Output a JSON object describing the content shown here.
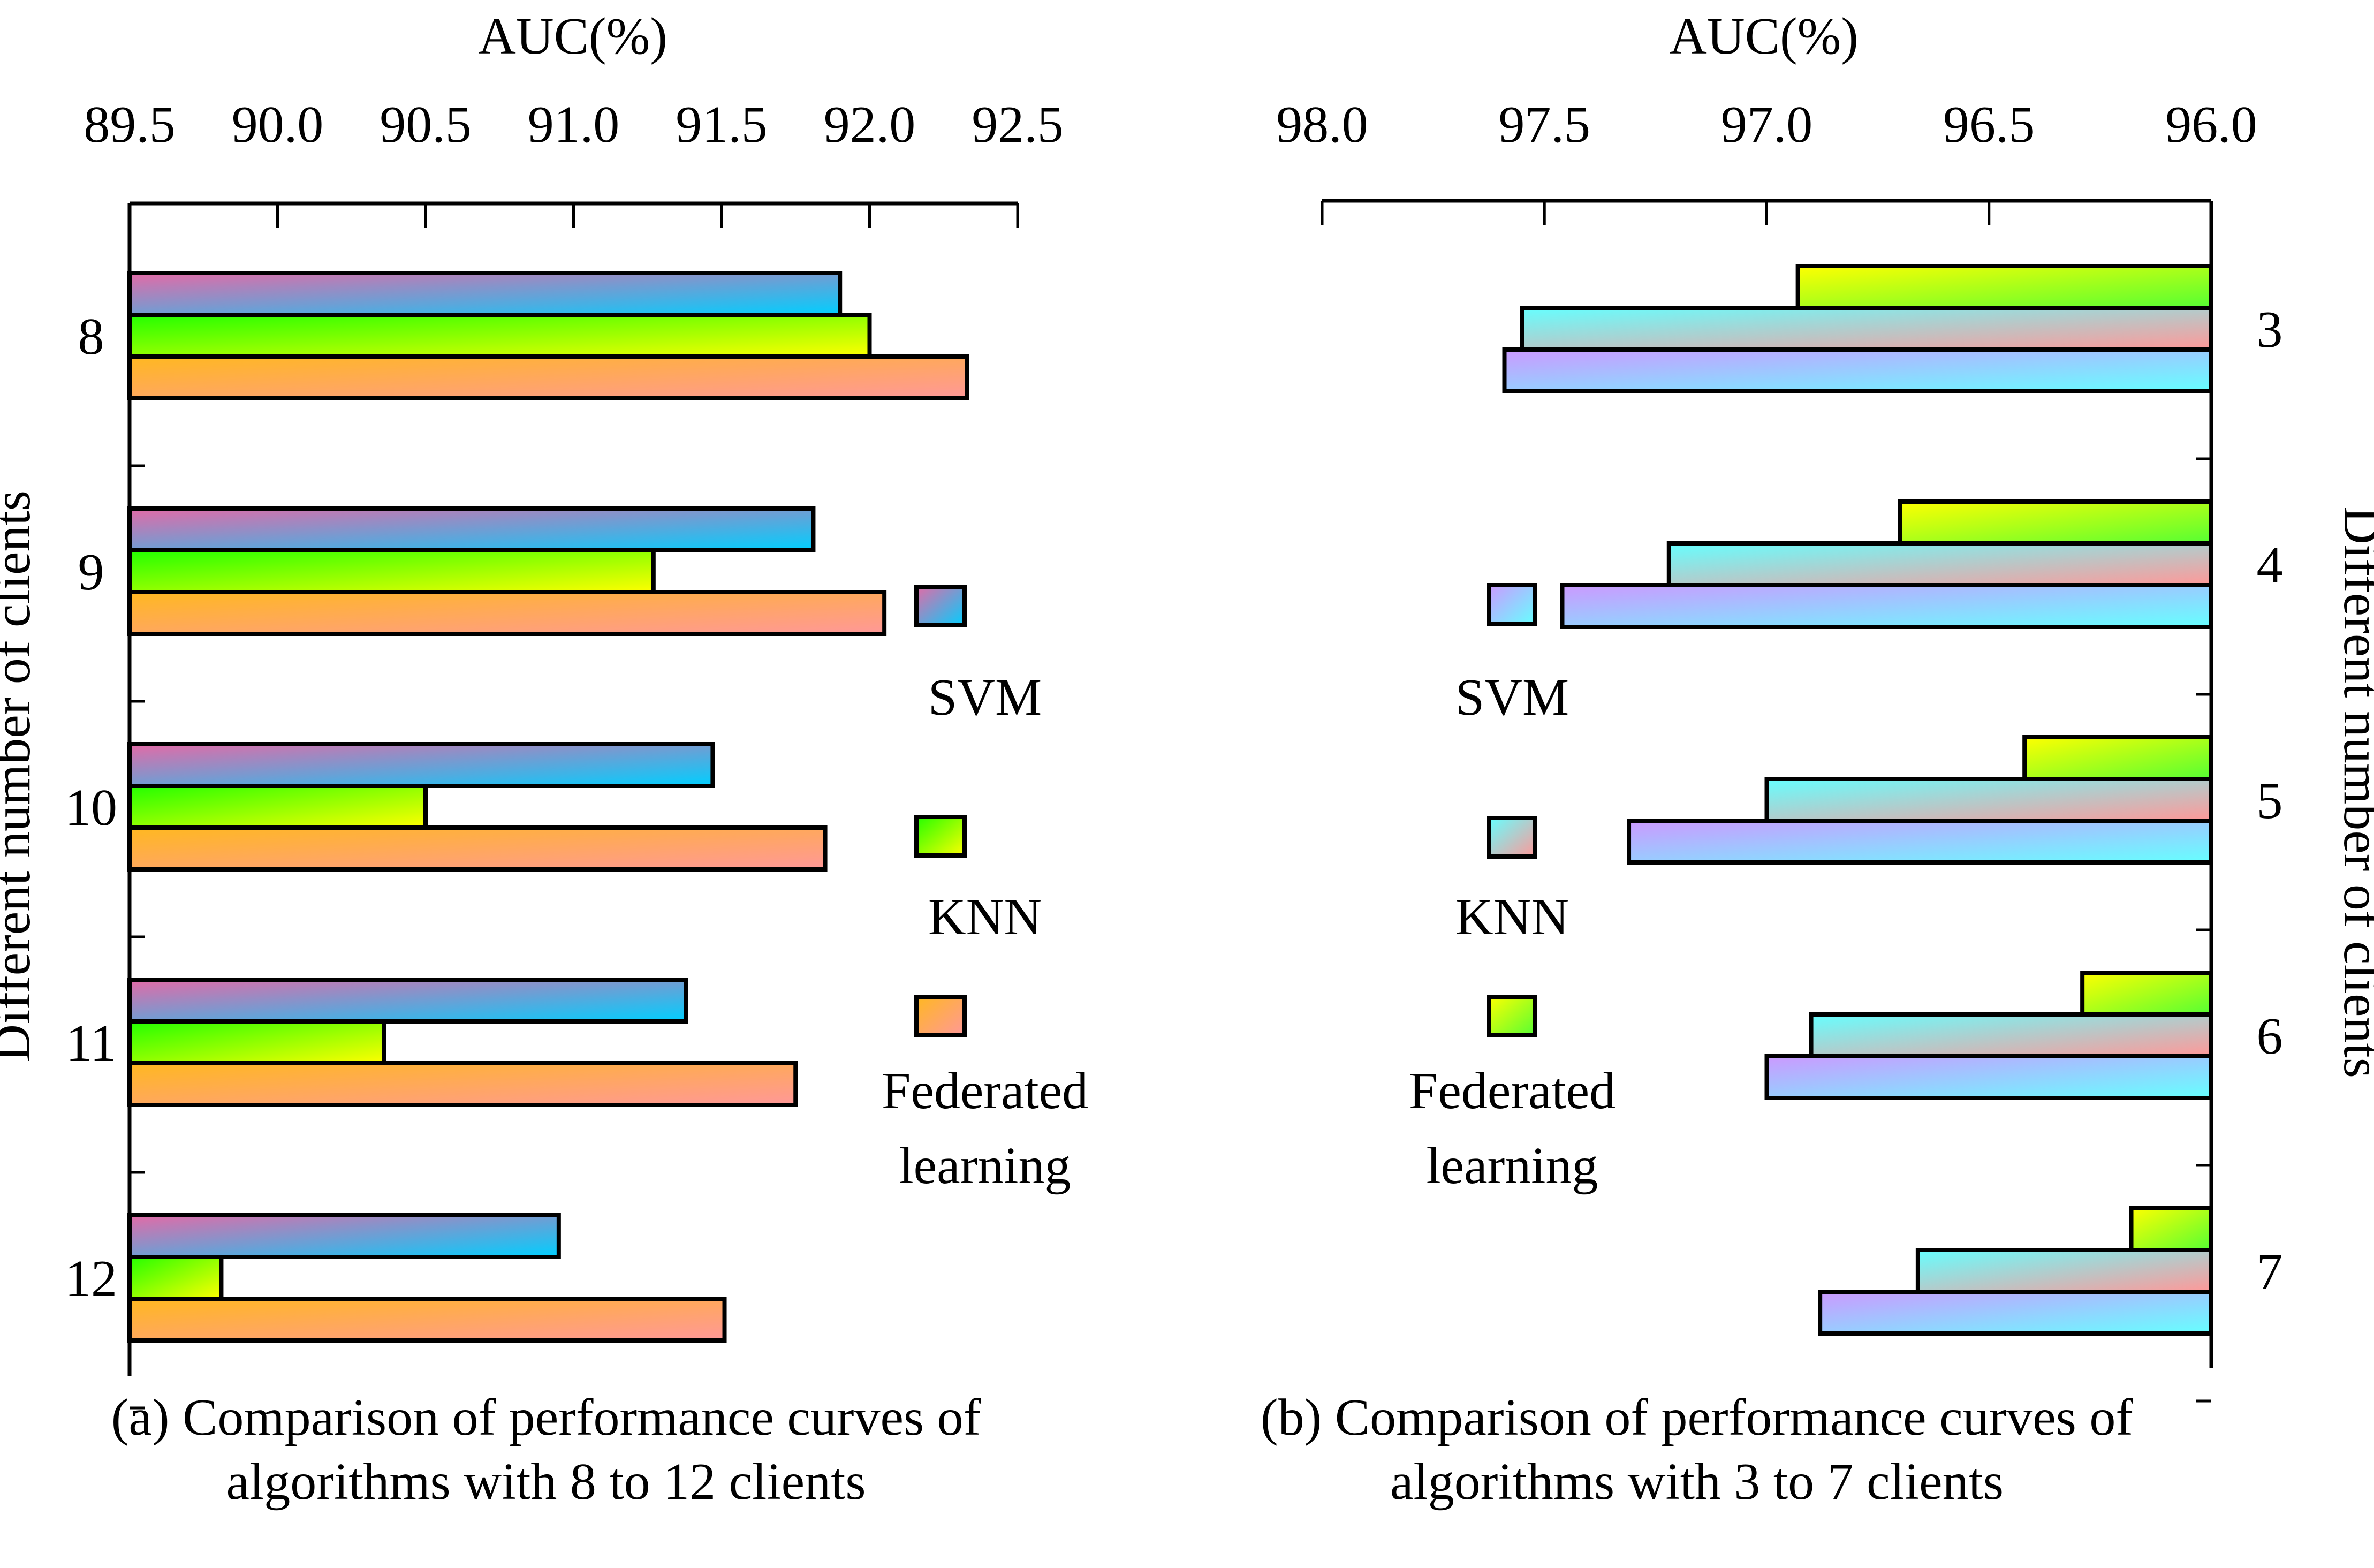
{
  "chart_data": [
    {
      "id": "a",
      "type": "bar",
      "orientation": "horizontal",
      "caption_lines": [
        "(a) Comparison of performance curves of",
        "algorithms with 8 to 12 clients"
      ],
      "xlabel": "AUC(%)",
      "ylabel": "Different number of clients",
      "xlim": [
        89.5,
        92.5
      ],
      "x_direction": "ascending",
      "x_ticks": [
        "89.5",
        "90.0",
        "90.5",
        "91.0",
        "91.5",
        "92.0",
        "92.5"
      ],
      "y_axis_side": "left",
      "categories": [
        "8",
        "9",
        "10",
        "11",
        "12"
      ],
      "legend_placement": "right-inside",
      "series": [
        {
          "name": "SVM",
          "values": [
            91.9,
            91.81,
            91.47,
            91.38,
            90.95
          ],
          "gradient": [
            "#e46aa6",
            "#00cfff"
          ]
        },
        {
          "name": "KNN",
          "values": [
            92.0,
            91.27,
            90.5,
            90.36,
            89.81
          ],
          "gradient": [
            "#22ff00",
            "#ffff00"
          ]
        },
        {
          "name": "Federated learning",
          "values": [
            92.33,
            92.05,
            91.85,
            91.75,
            91.51
          ],
          "gradient": [
            "#ffb820",
            "#ff9898"
          ]
        }
      ],
      "legend": [
        {
          "label_lines": [
            "SVM"
          ]
        },
        {
          "label_lines": [
            "KNN"
          ]
        },
        {
          "label_lines": [
            "Federated",
            "learning"
          ]
        }
      ]
    },
    {
      "id": "b",
      "type": "bar",
      "orientation": "horizontal",
      "caption_lines": [
        "(b) Comparison of performance curves of",
        "algorithms with 3 to 7 clients"
      ],
      "xlabel": "AUC(%)",
      "ylabel": "Different number of clients",
      "xlim": [
        98.0,
        96.0
      ],
      "x_direction": "descending",
      "x_ticks": [
        "98.0",
        "97.5",
        "97.0",
        "96.5",
        "96.0"
      ],
      "y_axis_side": "right",
      "categories": [
        "3",
        "4",
        "5",
        "6",
        "7"
      ],
      "legend_placement": "left-inside",
      "series": [
        {
          "name": "Federated learning",
          "values": [
            96.93,
            96.7,
            96.42,
            96.29,
            96.18
          ],
          "gradient": [
            "#ffff00",
            "#55ff33"
          ]
        },
        {
          "name": "KNN",
          "values": [
            97.55,
            97.22,
            97.0,
            96.9,
            96.66
          ],
          "gradient": [
            "#66ffff",
            "#ff9898"
          ]
        },
        {
          "name": "SVM",
          "values": [
            97.59,
            97.46,
            97.31,
            97.0,
            96.88
          ],
          "gradient": [
            "#cc99ff",
            "#66ffff"
          ]
        }
      ],
      "legend": [
        {
          "series": "SVM",
          "label_lines": [
            "SVM"
          ]
        },
        {
          "series": "KNN",
          "label_lines": [
            "KNN"
          ]
        },
        {
          "series": "Federated learning",
          "label_lines": [
            "Federated",
            "learning"
          ]
        }
      ]
    }
  ]
}
